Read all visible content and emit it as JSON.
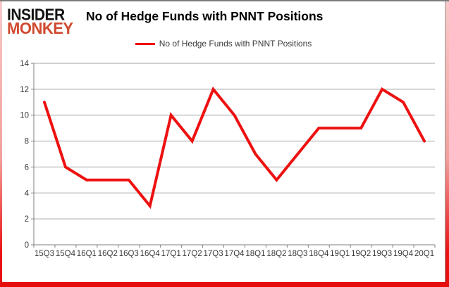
{
  "logo": {
    "line1": "INSIDER",
    "line2": "MONKEY"
  },
  "header": {
    "title": "No of Hedge Funds with PNNT Positions"
  },
  "legend": {
    "label": "No of Hedge Funds with PNNT Positions"
  },
  "colors": {
    "series_red": "#ed1111",
    "logo_black": "#141414",
    "logo_red": "#cf4a2f",
    "grid": "#a3a3a3",
    "axis": "#7f7f7f",
    "tick_text": "#3a3a3a",
    "frame_top_gray": "#7c7c7c",
    "frame_pink": "#f7c9c9",
    "frame_red": "#ea1212"
  },
  "chart_data": {
    "type": "line",
    "title": "No of Hedge Funds with PNNT Positions",
    "categories": [
      "15Q3",
      "15Q4",
      "16Q1",
      "16Q2",
      "16Q3",
      "16Q4",
      "17Q1",
      "17Q2",
      "17Q3",
      "17Q4",
      "18Q1",
      "18Q2",
      "18Q3",
      "18Q4",
      "19Q1",
      "19Q2",
      "19Q3",
      "19Q4",
      "20Q1"
    ],
    "series": [
      {
        "name": "No of Hedge Funds with PNNT Positions",
        "values": [
          11,
          6,
          5,
          5,
          5,
          3,
          10,
          8,
          12,
          10,
          7,
          5,
          7,
          9,
          9,
          9,
          12,
          11,
          8
        ],
        "color": "#ed1111"
      }
    ],
    "xlabel": "",
    "ylabel": "",
    "ylim": [
      0,
      14
    ],
    "ytick_step": 2,
    "grid": true,
    "legend_position": "top-center"
  }
}
